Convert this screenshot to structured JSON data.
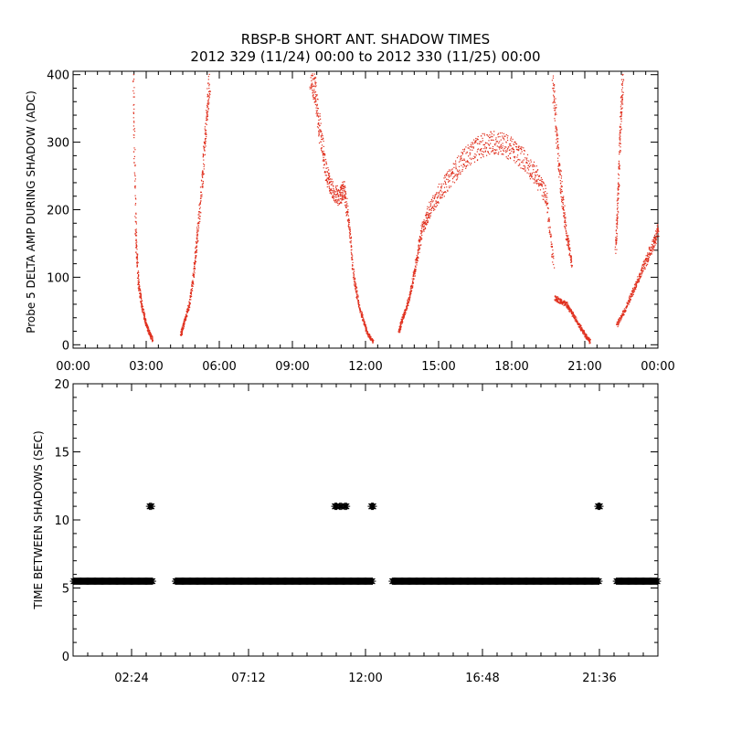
{
  "title": "RBSP-B SHORT ANT. SHADOW TIMES",
  "subtitle": "2012 329 (11/24) 00:00 to 2012 330 (11/25) 00:00",
  "colors": {
    "points": "#e0301e",
    "markers": "#000000",
    "axes": "#000000"
  },
  "chart_data": [
    {
      "type": "scatter",
      "ylabel": "Probe 5 DELTA AMP DURING SHADOW (ADC)",
      "xlabel": "",
      "xlim": [
        0,
        24
      ],
      "ylim": [
        -5,
        405
      ],
      "x_tick_labels": [
        "00:00",
        "03:00",
        "06:00",
        "09:00",
        "12:00",
        "15:00",
        "18:00",
        "21:00",
        "00:00"
      ],
      "y_tick_labels": [
        "0",
        "100",
        "200",
        "300",
        "400"
      ],
      "y_tick_values": [
        0,
        100,
        200,
        300,
        400
      ],
      "x_unit": "hours since 2012-11-24 00:00",
      "marker_color": "#e0301e",
      "segments": [
        {
          "x": [
            2.45,
            2.55,
            2.65,
            2.8,
            2.95,
            3.1,
            3.25
          ],
          "y": [
            400,
            170,
            95,
            60,
            35,
            18,
            8
          ]
        },
        {
          "x": [
            4.4,
            4.55,
            4.75,
            4.95,
            5.1,
            5.3,
            5.45,
            5.6
          ],
          "y": [
            15,
            35,
            60,
            110,
            170,
            250,
            330,
            400
          ]
        },
        {
          "x": [
            9.7,
            9.9,
            10.1,
            10.35,
            10.6,
            10.9,
            11.1,
            11.3,
            11.5,
            11.7,
            11.9,
            12.1,
            12.3
          ],
          "y": [
            400,
            380,
            320,
            260,
            230,
            220,
            230,
            180,
            100,
            60,
            35,
            15,
            5
          ]
        },
        {
          "x": [
            13.35,
            13.5,
            13.7,
            13.9,
            14.1,
            14.3,
            14.6,
            15.0,
            15.5,
            16.0,
            16.5,
            17.0,
            17.5,
            18.0,
            18.5,
            19.0,
            19.4,
            19.7
          ],
          "y": [
            20,
            40,
            60,
            90,
            130,
            170,
            200,
            225,
            250,
            275,
            290,
            300,
            300,
            290,
            275,
            250,
            220,
            120
          ]
        },
        {
          "x": [
            19.75,
            20.0,
            20.25,
            20.5,
            20.75,
            21.0,
            21.2
          ],
          "y": [
            70,
            65,
            60,
            45,
            30,
            15,
            5
          ]
        },
        {
          "x": [
            19.65,
            19.85,
            20.05,
            20.25,
            20.45
          ],
          "y": [
            400,
            300,
            220,
            160,
            120
          ]
        },
        {
          "x": [
            22.3,
            22.6,
            22.9,
            23.2,
            23.5,
            23.8,
            24.0
          ],
          "y": [
            30,
            50,
            75,
            100,
            125,
            150,
            170
          ]
        },
        {
          "x": [
            22.25,
            22.35,
            22.45,
            22.55
          ],
          "y": [
            140,
            220,
            330,
            400
          ]
        }
      ]
    },
    {
      "type": "scatter",
      "ylabel": "TIME BETWEEN SHADOWS (SEC)",
      "xlabel": "",
      "xlim": [
        0,
        24
      ],
      "ylim": [
        0,
        20
      ],
      "x_tick_labels": [
        "02:24",
        "07:12",
        "12:00",
        "16:48",
        "21:36"
      ],
      "x_tick_values": [
        2.4,
        7.2,
        12.0,
        16.8,
        21.6
      ],
      "y_tick_labels": [
        "0",
        "5",
        "10",
        "15",
        "20"
      ],
      "y_tick_values": [
        0,
        5,
        10,
        15,
        20
      ],
      "x_unit": "hours since 2012-11-24 00:00",
      "marker": "asterisk",
      "marker_color": "#000000",
      "runs_at_5_5_sec": [
        [
          0.0,
          3.3
        ],
        [
          4.2,
          12.3
        ],
        [
          13.1,
          21.6
        ],
        [
          22.3,
          24.0
        ]
      ],
      "points_at_11_sec": [
        3.2,
        10.8,
        11.0,
        11.2,
        12.3,
        21.6
      ]
    }
  ]
}
